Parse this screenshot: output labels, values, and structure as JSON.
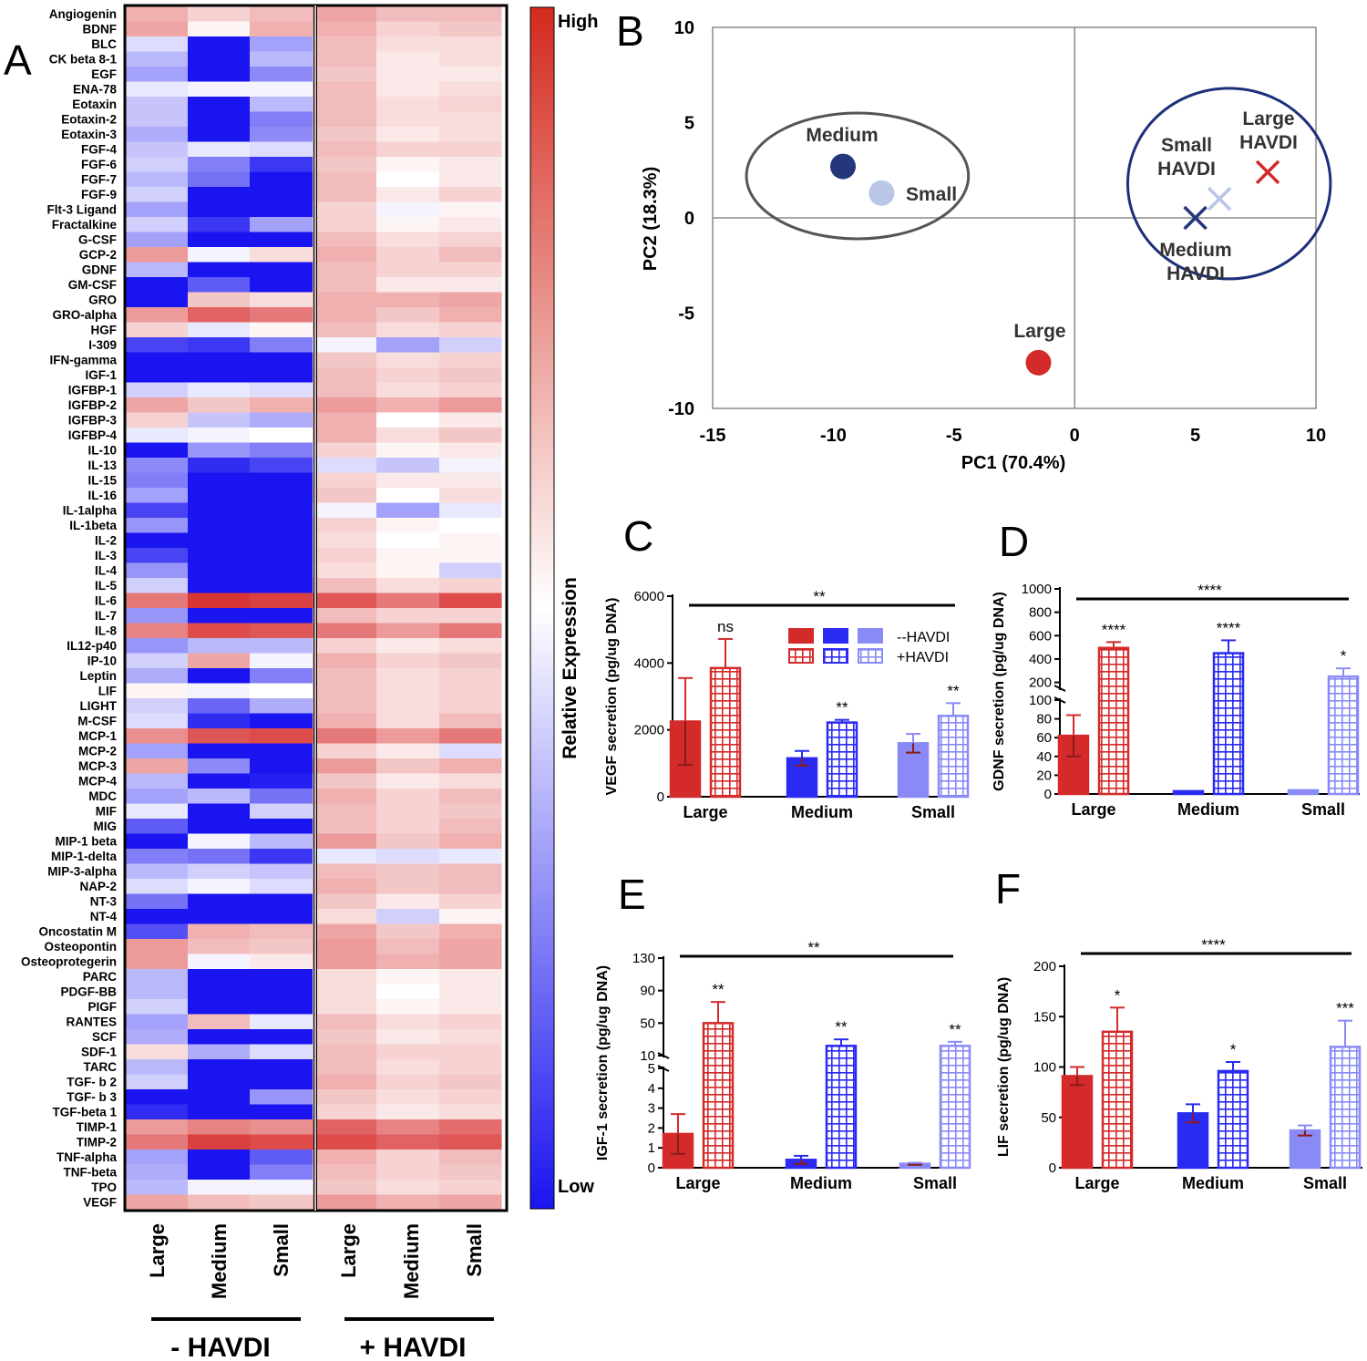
{
  "colors": {
    "red": "#d42a2a",
    "blue": "#2a2af2",
    "lightblue": "#8a8af6",
    "navy": "#24377a",
    "pc_light": "#b9c6e8",
    "ellipse_left": "#555555",
    "ellipse_right": "#1e2f7a",
    "axis": "#000000"
  },
  "chart_data": [
    {
      "panel": "A",
      "type": "heatmap",
      "label": "A",
      "rows": [
        "Angiogenin",
        "BDNF",
        "BLC",
        "CK beta 8-1",
        "EGF",
        "ENA-78",
        "Eotaxin",
        "Eotaxin-2",
        "Eotaxin-3",
        "FGF-4",
        "FGF-6",
        "FGF-7",
        "FGF-9",
        "Flt-3 Ligand",
        "Fractalkine",
        "G-CSF",
        "GCP-2",
        "GDNF",
        "GM-CSF",
        "GRO",
        "GRO-alpha",
        "HGF",
        "I-309",
        "IFN-gamma",
        "IGF-1",
        "IGFBP-1",
        "IGFBP-2",
        "IGFBP-3",
        "IGFBP-4",
        "IL-10",
        "IL-13",
        "IL-15",
        "IL-16",
        "IL-1alpha",
        "IL-1beta",
        "IL-2",
        "IL-3",
        "IL-4",
        "IL-5",
        "IL-6",
        "IL-7",
        "IL-8",
        "IL12-p40",
        "IP-10",
        "Leptin",
        "LIF",
        "LIGHT",
        "M-CSF",
        "MCP-1",
        "MCP-2",
        "MCP-3",
        "MCP-4",
        "MDC",
        "MIF",
        "MIG",
        "MIP-1 beta",
        "MIP-1-delta",
        "MIP-3-alpha",
        "NAP-2",
        "NT-3",
        "NT-4",
        "Oncostatin M",
        "Osteopontin",
        "Osteoprotegerin",
        "PARC",
        "PDGF-BB",
        "PIGF",
        "RANTES",
        "SCF",
        "SDF-1",
        "TARC",
        "TGF- b 2",
        "TGF- b 3",
        "TGF-beta 1",
        "TIMP-1",
        "TIMP-2",
        "TNF-alpha",
        "TNF-beta",
        "TPO",
        "VEGF"
      ],
      "columns": [
        "Large",
        "Medium",
        "Small",
        "Large",
        "Medium",
        "Small"
      ],
      "groups": [
        "- HAVDI",
        "+ HAVDI"
      ],
      "colorbar": {
        "high": "High",
        "low": "Low",
        "label": "Relative Expression"
      },
      "values": [
        [
          0.35,
          0.2,
          0.3,
          0.4,
          0.3,
          0.3
        ],
        [
          0.4,
          0.05,
          0.35,
          0.35,
          0.2,
          0.25
        ],
        [
          -0.15,
          -1,
          -0.4,
          0.3,
          0.15,
          0.15
        ],
        [
          -0.3,
          -1,
          -0.3,
          0.3,
          0.1,
          0.15
        ],
        [
          -0.4,
          -1,
          -0.5,
          0.25,
          0.1,
          0.1
        ],
        [
          -0.1,
          -0.05,
          -0.05,
          0.3,
          0.1,
          0.15
        ],
        [
          -0.25,
          -1,
          -0.3,
          0.3,
          0.15,
          0.2
        ],
        [
          -0.25,
          -1,
          -0.55,
          0.3,
          0.15,
          0.15
        ],
        [
          -0.35,
          -1,
          -0.5,
          0.25,
          0.1,
          0.15
        ],
        [
          -0.25,
          -0.1,
          -0.15,
          0.3,
          0.2,
          0.2
        ],
        [
          -0.2,
          -0.55,
          -0.85,
          0.25,
          0.05,
          0.1
        ],
        [
          -0.3,
          -0.6,
          -1,
          0.3,
          0.0,
          0.1
        ],
        [
          -0.2,
          -1,
          -1,
          0.3,
          0.1,
          0.2
        ],
        [
          -0.4,
          -1,
          -1,
          0.2,
          -0.05,
          0.05
        ],
        [
          -0.2,
          -0.85,
          -0.4,
          0.2,
          0.05,
          0.1
        ],
        [
          -0.4,
          -1,
          -1,
          0.3,
          0.15,
          0.2
        ],
        [
          0.45,
          -0.05,
          0.15,
          0.35,
          0.2,
          0.3
        ],
        [
          -0.3,
          -1,
          -1,
          0.3,
          0.2,
          0.2
        ],
        [
          -1,
          -0.7,
          -1,
          0.3,
          0.1,
          0.1
        ],
        [
          -1,
          0.25,
          0.15,
          0.35,
          0.35,
          0.4
        ],
        [
          0.45,
          0.7,
          0.6,
          0.35,
          0.25,
          0.35
        ],
        [
          0.2,
          -0.1,
          0.05,
          0.3,
          0.15,
          0.2
        ],
        [
          -0.8,
          -0.85,
          -0.55,
          -0.05,
          -0.4,
          -0.2
        ],
        [
          -1,
          -1,
          -1,
          0.25,
          0.15,
          0.2
        ],
        [
          -1,
          -1,
          -1,
          0.3,
          0.2,
          0.25
        ],
        [
          -0.2,
          -0.1,
          -0.15,
          0.3,
          0.15,
          0.2
        ],
        [
          0.4,
          0.25,
          0.35,
          0.45,
          0.35,
          0.45
        ],
        [
          0.2,
          -0.25,
          -0.35,
          0.35,
          0.0,
          0.1
        ],
        [
          -0.1,
          -0.05,
          0.0,
          0.35,
          0.15,
          0.25
        ],
        [
          -1,
          -0.45,
          -0.55,
          0.2,
          0.05,
          0.1
        ],
        [
          -0.5,
          -0.9,
          -0.8,
          -0.15,
          -0.25,
          -0.05
        ],
        [
          -0.55,
          -1,
          -1,
          0.2,
          0.1,
          0.1
        ],
        [
          -0.4,
          -1,
          -1,
          0.25,
          0.0,
          0.15
        ],
        [
          -0.8,
          -1,
          -1,
          -0.05,
          -0.4,
          -0.1
        ],
        [
          -0.45,
          -1,
          -1,
          0.2,
          0.05,
          0.0
        ],
        [
          -1,
          -1,
          -1,
          0.15,
          0.0,
          0.05
        ],
        [
          -0.8,
          -1,
          -1,
          0.2,
          0.05,
          0.05
        ],
        [
          -0.45,
          -1,
          -1,
          0.15,
          0.05,
          -0.2
        ],
        [
          -0.2,
          -1,
          -1,
          0.3,
          0.15,
          0.2
        ],
        [
          0.6,
          0.9,
          0.85,
          0.75,
          0.6,
          0.8
        ],
        [
          -0.45,
          -1,
          -1,
          0.3,
          0.2,
          0.2
        ],
        [
          0.55,
          0.8,
          0.75,
          0.6,
          0.45,
          0.6
        ],
        [
          -0.45,
          -0.3,
          -0.3,
          0.2,
          0.1,
          0.15
        ],
        [
          -0.2,
          0.4,
          -0.05,
          0.35,
          0.2,
          0.25
        ],
        [
          -0.35,
          -1,
          -0.55,
          0.3,
          0.15,
          0.2
        ],
        [
          0.05,
          -0.05,
          0.0,
          0.3,
          0.15,
          0.2
        ],
        [
          -0.2,
          -0.65,
          -0.35,
          0.3,
          0.15,
          0.2
        ],
        [
          -0.15,
          -0.9,
          -1,
          0.35,
          0.15,
          0.3
        ],
        [
          0.5,
          0.75,
          0.8,
          0.6,
          0.45,
          0.6
        ],
        [
          -0.4,
          -1,
          -1,
          0.2,
          0.1,
          -0.15
        ],
        [
          0.4,
          -0.5,
          -1,
          0.45,
          0.25,
          0.35
        ],
        [
          -0.3,
          -1,
          -0.95,
          0.25,
          0.1,
          0.15
        ],
        [
          -0.4,
          -0.3,
          -0.6,
          0.35,
          0.2,
          0.3
        ],
        [
          -0.1,
          -1,
          -0.2,
          0.3,
          0.2,
          0.25
        ],
        [
          -0.7,
          -1,
          -1,
          0.3,
          0.2,
          0.3
        ],
        [
          -1,
          -0.05,
          -0.3,
          0.45,
          0.25,
          0.35
        ],
        [
          -0.55,
          -0.6,
          -0.85,
          -0.1,
          -0.15,
          -0.1
        ],
        [
          -0.3,
          -0.2,
          -0.25,
          0.3,
          0.25,
          0.3
        ],
        [
          -0.15,
          -0.05,
          -0.15,
          0.35,
          0.25,
          0.3
        ],
        [
          -0.6,
          -1,
          -1,
          0.25,
          0.1,
          0.2
        ],
        [
          -1,
          -1,
          -1,
          0.15,
          -0.2,
          0.05
        ],
        [
          -0.75,
          0.35,
          0.3,
          0.4,
          0.25,
          0.35
        ],
        [
          0.45,
          0.3,
          0.25,
          0.45,
          0.3,
          0.4
        ],
        [
          0.45,
          -0.05,
          0.1,
          0.45,
          0.35,
          0.4
        ],
        [
          -0.3,
          -1,
          -1,
          0.15,
          0.05,
          0.1
        ],
        [
          -0.3,
          -1,
          -1,
          0.15,
          0.0,
          0.1
        ],
        [
          -0.2,
          -1,
          -1,
          0.15,
          0.05,
          0.1
        ],
        [
          -0.4,
          0.3,
          -0.1,
          0.3,
          0.15,
          0.2
        ],
        [
          -0.35,
          -1,
          -1,
          0.25,
          0.1,
          0.15
        ],
        [
          0.15,
          -0.35,
          -0.15,
          0.3,
          0.2,
          0.2
        ],
        [
          -0.3,
          -1,
          -1,
          0.3,
          0.15,
          0.2
        ],
        [
          -0.2,
          -1,
          -1,
          0.35,
          0.2,
          0.25
        ],
        [
          -1,
          -1,
          -0.45,
          0.25,
          0.15,
          0.2
        ],
        [
          -0.9,
          -1,
          -1,
          0.2,
          0.1,
          0.15
        ],
        [
          0.45,
          0.55,
          0.5,
          0.7,
          0.55,
          0.65
        ],
        [
          0.6,
          0.85,
          0.8,
          0.8,
          0.7,
          0.75
        ],
        [
          -0.4,
          -1,
          -0.7,
          0.35,
          0.2,
          0.3
        ],
        [
          -0.35,
          -1,
          -0.55,
          0.3,
          0.2,
          0.25
        ],
        [
          -0.3,
          -0.05,
          -0.05,
          0.25,
          0.15,
          0.2
        ],
        [
          0.4,
          0.3,
          0.25,
          0.45,
          0.35,
          0.4
        ]
      ]
    },
    {
      "panel": "B",
      "type": "scatter",
      "label": "B",
      "xlabel": "PC1 (70.4%)",
      "ylabel": "PC2 (18.3%)",
      "xlim": [
        -15,
        10
      ],
      "ylim": [
        -10,
        10
      ],
      "xticks": [
        -15,
        -10,
        -5,
        0,
        5,
        10
      ],
      "yticks": [
        -10,
        -5,
        0,
        5,
        10
      ],
      "points": [
        {
          "name": "Medium",
          "x": -9.6,
          "y": 2.7,
          "marker": "circle",
          "color": "navy",
          "label": "Medium"
        },
        {
          "name": "Small",
          "x": -8.0,
          "y": 1.3,
          "marker": "circle",
          "color": "pc_light",
          "label": "Small"
        },
        {
          "name": "Large",
          "x": -1.5,
          "y": -7.6,
          "marker": "circle",
          "color": "red",
          "label": "Large"
        },
        {
          "name": "Large HAVDI",
          "x": 8.0,
          "y": 2.4,
          "marker": "cross",
          "color": "red",
          "label": [
            "Large",
            "HAVDI"
          ]
        },
        {
          "name": "Small HAVDI",
          "x": 6.0,
          "y": 1.0,
          "marker": "cross",
          "color": "pc_light",
          "label": [
            "Small",
            "HAVDI"
          ]
        },
        {
          "name": "Medium HAVDI",
          "x": 5.0,
          "y": 0.0,
          "marker": "cross",
          "color": "navy",
          "label": [
            "Medium",
            "HAVDI"
          ]
        }
      ],
      "groups_ellipses": [
        {
          "name": "untreated",
          "cx": -9.0,
          "cy": 2.2,
          "rx": 4.6,
          "ry": 3.3,
          "color": "ellipse_left"
        },
        {
          "name": "treated",
          "cx": 6.4,
          "cy": 1.8,
          "rx": 4.2,
          "ry": 5.0,
          "color": "ellipse_right"
        }
      ]
    },
    {
      "panel": "C",
      "type": "bar",
      "label": "C",
      "ylabel": "VEGF secretion (pg/ug DNA)",
      "categories": [
        "Large",
        "Medium",
        "Small"
      ],
      "ylim": [
        0,
        6000
      ],
      "yticks": [
        "0",
        "2000",
        "4000",
        "6000"
      ],
      "series": [
        {
          "name": "--HAVDI",
          "values": [
            2250,
            1150,
            1600
          ],
          "errors": [
            1300,
            220,
            280
          ]
        },
        {
          "name": "+HAVDI",
          "values": [
            3850,
            2220,
            2420
          ],
          "errors": [
            870,
            80,
            380
          ]
        }
      ],
      "annotations": [
        "ns",
        "**",
        "**"
      ],
      "overall": "**",
      "legend": [
        "--HAVDI",
        "+HAVDI"
      ]
    },
    {
      "panel": "D",
      "type": "bar",
      "label": "D",
      "ylabel": "GDNF secretion (pg/ug DNA)",
      "categories": [
        "Large",
        "Medium",
        "Small"
      ],
      "broken_axis": {
        "lower": [
          0,
          100
        ],
        "upper": [
          150,
          1000
        ]
      },
      "yticks_lower": [
        "0",
        "20",
        "40",
        "60",
        "80",
        "100"
      ],
      "yticks_upper": [
        "200",
        "400",
        "600",
        "800",
        "1000"
      ],
      "series": [
        {
          "name": "--HAVDI",
          "values": [
            62,
            3,
            4
          ],
          "errors": [
            22,
            0,
            0
          ]
        },
        {
          "name": "+HAVDI",
          "values": [
            495,
            450,
            250
          ],
          "errors": [
            50,
            110,
            70
          ]
        }
      ],
      "annotations": [
        "****",
        "****",
        "*"
      ],
      "overall": "****"
    },
    {
      "panel": "E",
      "type": "bar",
      "label": "E",
      "ylabel": "IGF-1 secretion (pg/ug DNA)",
      "categories": [
        "Large",
        "Medium",
        "Small"
      ],
      "broken_axis": {
        "lower": [
          0,
          5
        ],
        "upper": [
          10,
          130
        ]
      },
      "yticks_lower": [
        "0",
        "1",
        "2",
        "3",
        "4",
        "5"
      ],
      "yticks_upper": [
        "10",
        "50",
        "90",
        "130"
      ],
      "series": [
        {
          "name": "--HAVDI",
          "values": [
            1.7,
            0.4,
            0.2
          ],
          "errors": [
            1.0,
            0.2,
            0.05
          ]
        },
        {
          "name": "+HAVDI",
          "values": [
            50,
            22,
            22
          ],
          "errors": [
            26,
            8,
            5
          ]
        }
      ],
      "annotations": [
        "**",
        "**",
        "**"
      ],
      "overall": "**"
    },
    {
      "panel": "F",
      "type": "bar",
      "label": "F",
      "ylabel": "LIF secretion (pg/ug DNA)",
      "categories": [
        "Large",
        "Medium",
        "Small"
      ],
      "ylim": [
        0,
        200
      ],
      "yticks": [
        "0",
        "50",
        "100",
        "150",
        "200"
      ],
      "series": [
        {
          "name": "--HAVDI",
          "values": [
            91,
            54,
            37
          ],
          "errors": [
            9,
            9,
            5
          ]
        },
        {
          "name": "+HAVDI",
          "values": [
            135,
            96,
            120
          ],
          "errors": [
            24,
            9,
            26
          ]
        }
      ],
      "annotations": [
        "*",
        "*",
        "***"
      ],
      "overall": "****"
    }
  ]
}
